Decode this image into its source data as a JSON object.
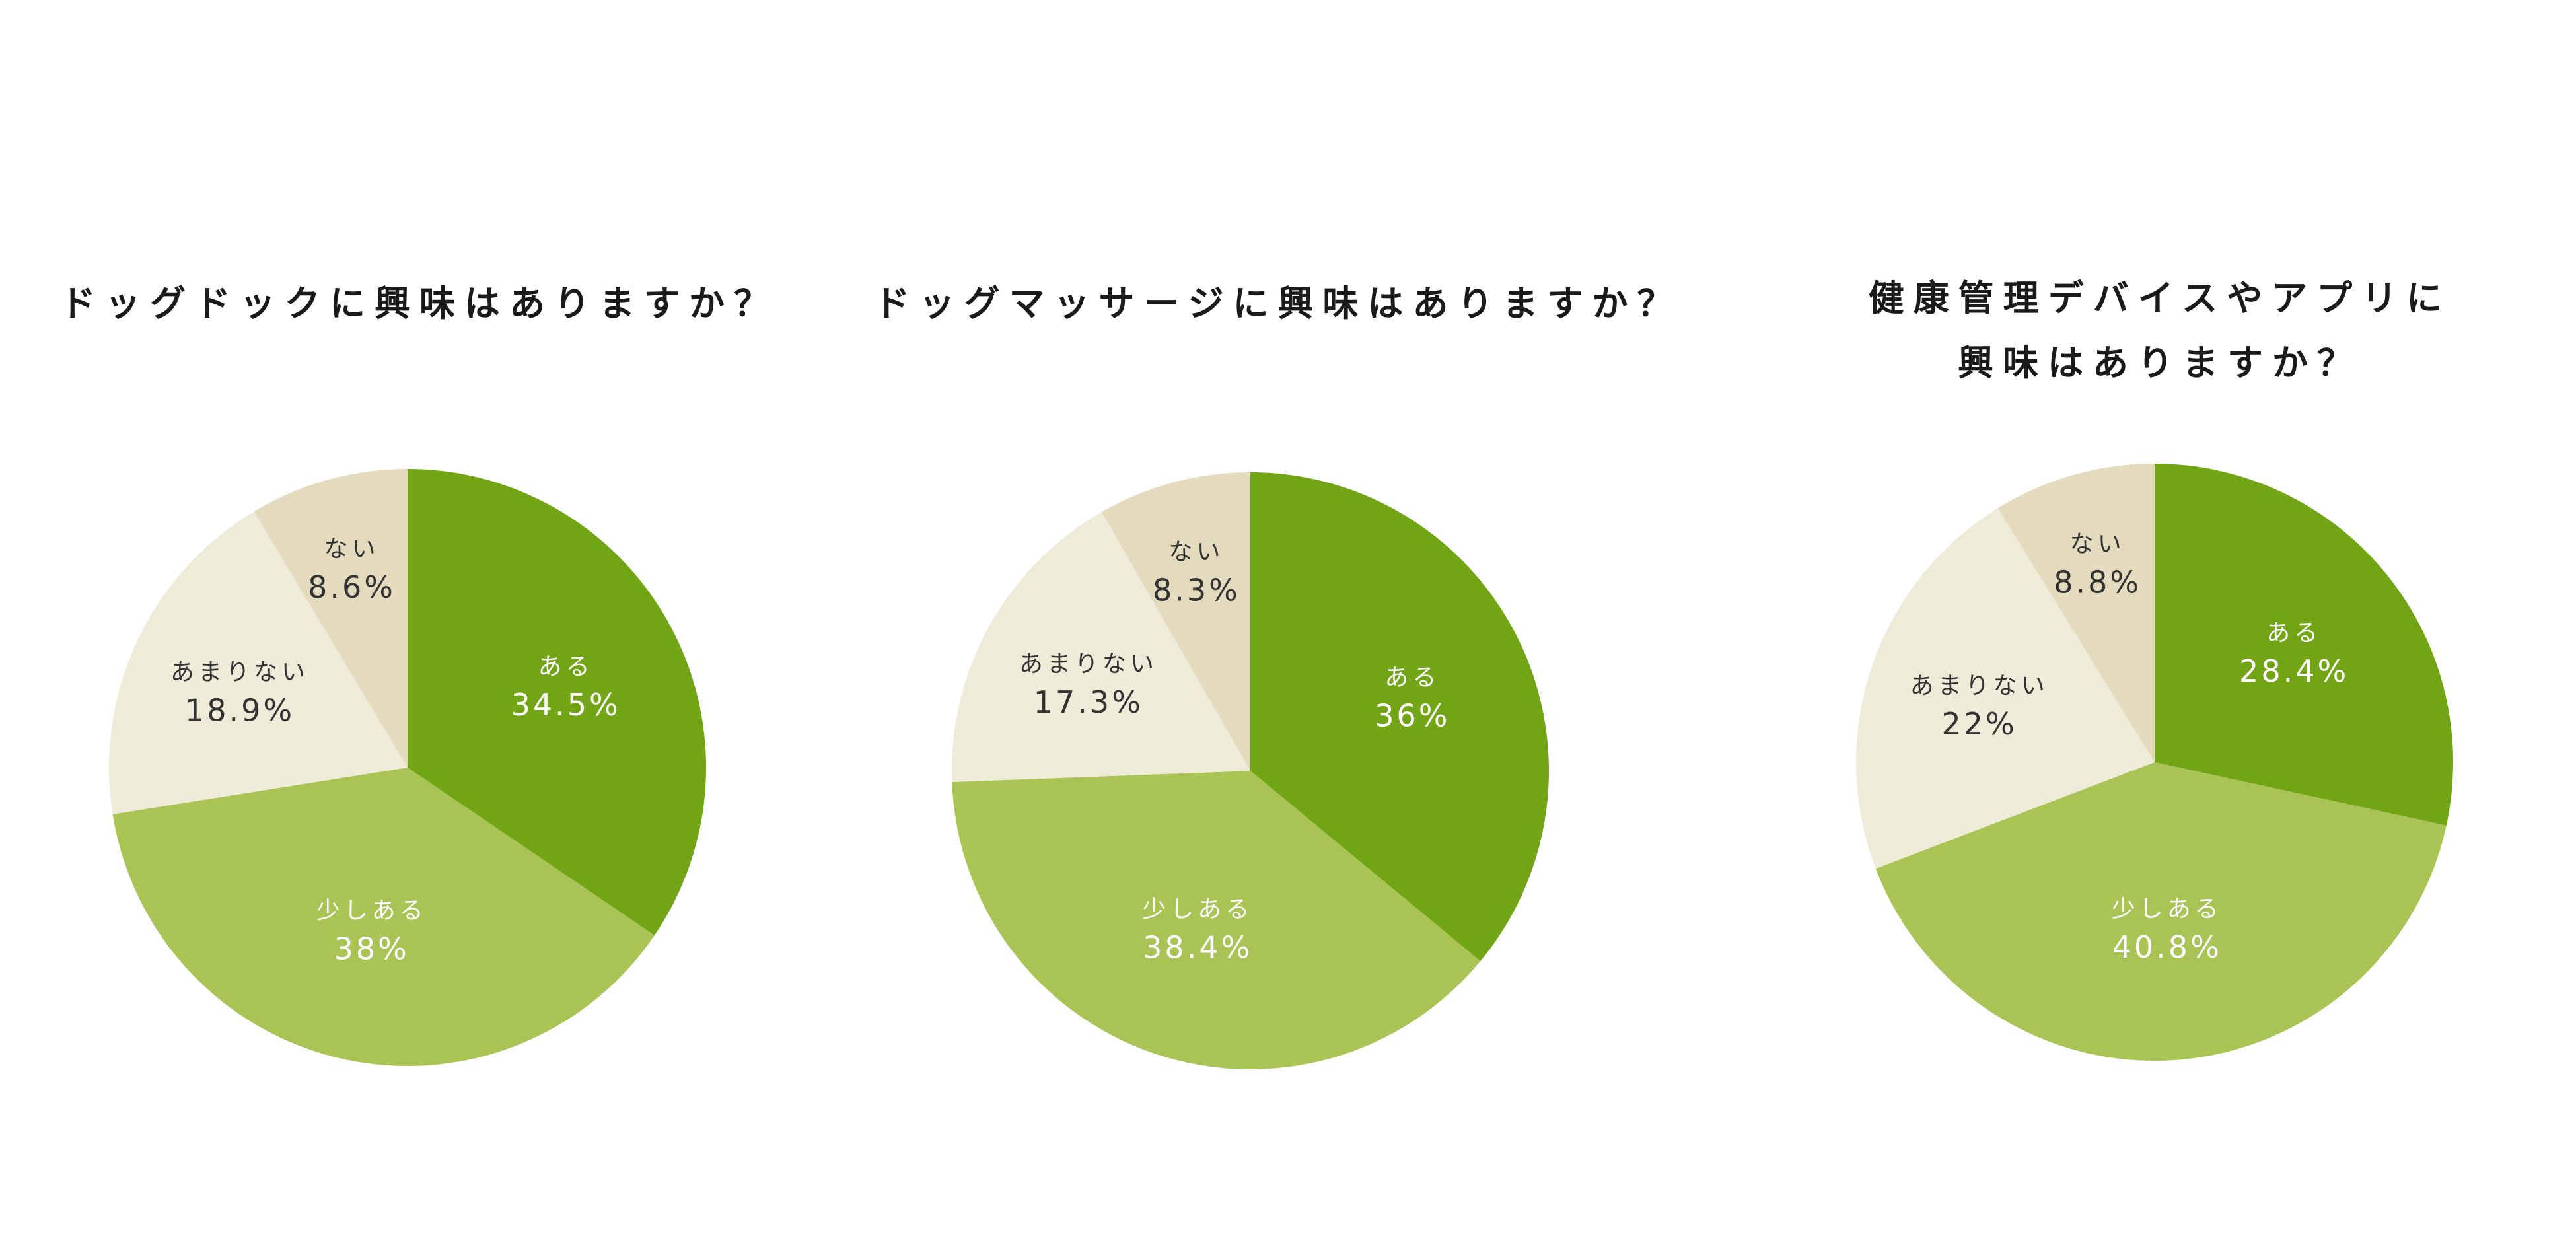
{
  "chart_data": [
    {
      "type": "pie",
      "title_lines": [
        "ドッグドックに興味はありますか？"
      ],
      "start_angle": "12 o'clock, clockwise",
      "slices": [
        {
          "label": "ある",
          "value": 34.5,
          "value_label": "34.5%",
          "color": "#72a516"
        },
        {
          "label": "少しある",
          "value": 38,
          "value_label": "38%",
          "color": "#a9c354"
        },
        {
          "label": "あまりない",
          "value": 18.9,
          "value_label": "18.9%",
          "color": "#eeebd9"
        },
        {
          "label": "ない",
          "value": 8.6,
          "value_label": "8.6%",
          "color": "#e4dbbf"
        }
      ]
    },
    {
      "type": "pie",
      "title_lines": [
        "ドッグマッサージに興味はありますか？"
      ],
      "start_angle": "12 o'clock, clockwise",
      "slices": [
        {
          "label": "ある",
          "value": 36,
          "value_label": "36%",
          "color": "#72a516"
        },
        {
          "label": "少しある",
          "value": 38.4,
          "value_label": "38.4%",
          "color": "#a9c354"
        },
        {
          "label": "あまりない",
          "value": 17.3,
          "value_label": "17.3%",
          "color": "#eeebd9"
        },
        {
          "label": "ない",
          "value": 8.3,
          "value_label": "8.3%",
          "color": "#e4dbbf"
        }
      ]
    },
    {
      "type": "pie",
      "title_lines": [
        "健康管理デバイスやアプリに",
        "興味はありますか？"
      ],
      "start_angle": "12 o'clock, clockwise",
      "slices": [
        {
          "label": "ある",
          "value": 28.4,
          "value_label": "28.4%",
          "color": "#72a516"
        },
        {
          "label": "少しある",
          "value": 40.8,
          "value_label": "40.8%",
          "color": "#a9c354"
        },
        {
          "label": "あまりない",
          "value": 22,
          "value_label": "22%",
          "color": "#eeebd9"
        },
        {
          "label": "ない",
          "value": 8.8,
          "value_label": "8.8%",
          "color": "#e4dbbf"
        }
      ]
    }
  ],
  "colors": {
    "text_on_dark": "#ffffff",
    "text_on_light": "#333333",
    "title": "#1a1a1a"
  }
}
